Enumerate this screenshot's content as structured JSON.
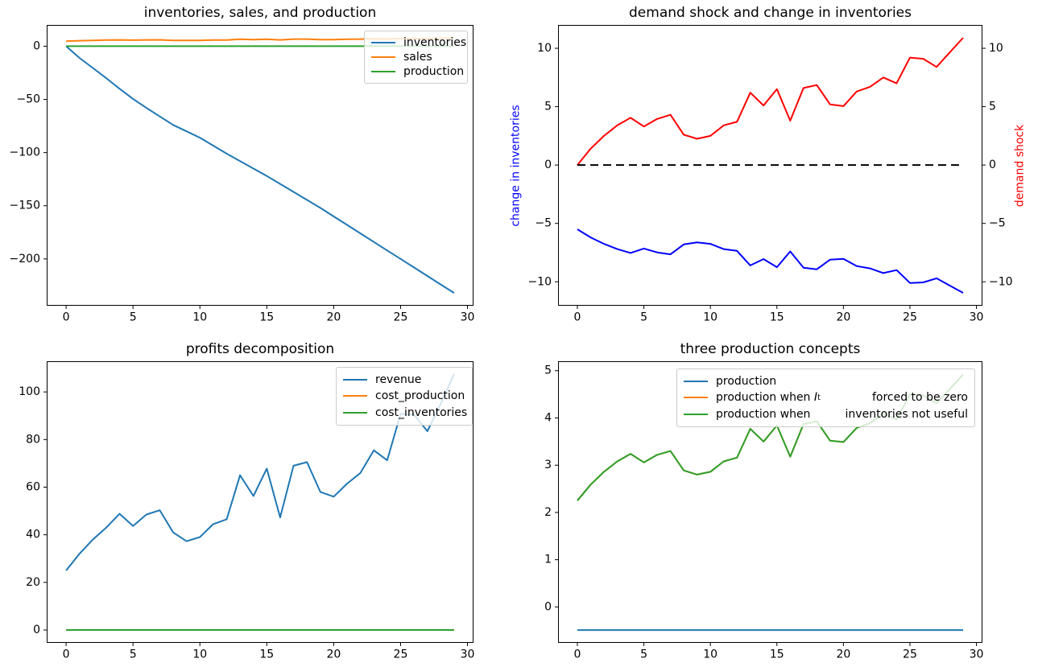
{
  "figure": {
    "background": "#ffffff"
  },
  "chart_data": [
    {
      "id": "inventories-sales-production",
      "type": "line",
      "title": "inventories, sales, and production",
      "x": [
        0,
        1,
        2,
        3,
        4,
        5,
        6,
        7,
        8,
        9,
        10,
        11,
        12,
        13,
        14,
        15,
        16,
        17,
        18,
        19,
        20,
        21,
        22,
        23,
        24,
        25,
        26,
        27,
        28,
        29
      ],
      "xlim": [
        -1.45,
        30.45
      ],
      "ylim": [
        -244,
        20
      ],
      "xticks": [
        0,
        5,
        10,
        15,
        20,
        25,
        30
      ],
      "yticks": [
        0,
        -50,
        -100,
        -150,
        -200
      ],
      "grid": false,
      "legend": {
        "position": "upper right",
        "entries": [
          {
            "label": "inventories"
          },
          {
            "label": "sales"
          },
          {
            "label": "production"
          }
        ]
      },
      "series": [
        {
          "name": "inventories",
          "color": "#1f77b4",
          "values": [
            0,
            -11,
            -20.5,
            -30,
            -40,
            -49.5,
            -58,
            -66,
            -74,
            -80,
            -86,
            -93.5,
            -101,
            -108,
            -115,
            -122,
            -129.5,
            -137,
            -144.5,
            -152,
            -160,
            -168,
            -176,
            -184,
            -192,
            -200,
            -208,
            -216,
            -224,
            -232
          ]
        },
        {
          "name": "sales",
          "color": "#ff7f0e",
          "values": [
            4.8,
            5.2,
            5.5,
            5.75,
            5.9,
            5.7,
            5.9,
            6.0,
            5.5,
            5.4,
            5.5,
            5.75,
            5.8,
            6.5,
            6.2,
            6.6,
            5.9,
            6.65,
            6.7,
            6.25,
            6.2,
            6.55,
            6.65,
            6.9,
            6.75,
            7.4,
            7.35,
            7.15,
            7.5,
            7.85
          ]
        },
        {
          "name": "production",
          "color": "#2ca02c",
          "values": [
            0,
            0,
            0,
            0,
            0,
            0,
            0,
            0,
            0,
            0,
            0,
            0,
            0,
            0,
            0,
            0,
            0,
            0,
            0,
            0,
            0,
            0,
            0,
            0,
            0,
            0,
            0,
            0,
            0,
            0
          ]
        }
      ]
    },
    {
      "id": "demand-shock-and-change-in-inventories",
      "type": "line",
      "title": "demand shock and change in inventories",
      "x": [
        0,
        1,
        2,
        3,
        4,
        5,
        6,
        7,
        8,
        9,
        10,
        11,
        12,
        13,
        14,
        15,
        16,
        17,
        18,
        19,
        20,
        21,
        22,
        23,
        24,
        25,
        26,
        27,
        28,
        29
      ],
      "xlim": [
        -1.45,
        30.45
      ],
      "ylim": [
        -12.05,
        12.0
      ],
      "xticks": [
        0,
        5,
        10,
        15,
        20,
        25,
        30
      ],
      "yticks_left": [
        10,
        5,
        0,
        -5,
        -10
      ],
      "yticks_right": [
        10,
        5,
        0,
        -5,
        -10
      ],
      "ylabel_left": {
        "text": "change in inventories",
        "color": "#0000ff"
      },
      "ylabel_right": {
        "text": "demand shock",
        "color": "#ff0000"
      },
      "grid": false,
      "series": [
        {
          "name": "change in inventories",
          "color": "#0000ff",
          "values": [
            -5.5,
            -6.2,
            -6.75,
            -7.2,
            -7.53,
            -7.15,
            -7.48,
            -7.65,
            -6.8,
            -6.63,
            -6.75,
            -7.2,
            -7.35,
            -8.6,
            -8.05,
            -8.75,
            -7.4,
            -8.8,
            -8.93,
            -8.1,
            -8.03,
            -8.65,
            -8.85,
            -9.25,
            -9.0,
            -10.1,
            -10.05,
            -9.7,
            -10.33,
            -10.95
          ]
        },
        {
          "name": "demand shock",
          "color": "#ff0000",
          "values": [
            0,
            1.4,
            2.5,
            3.4,
            4.05,
            3.3,
            3.95,
            4.3,
            2.6,
            2.25,
            2.5,
            3.4,
            3.7,
            6.2,
            5.1,
            6.5,
            3.8,
            6.6,
            6.85,
            5.2,
            5.05,
            6.3,
            6.7,
            7.5,
            7.0,
            9.2,
            9.1,
            8.4,
            9.65,
            10.9
          ]
        },
        {
          "name": "zero line",
          "color": "#000000",
          "dash": true,
          "values": [
            0,
            0,
            0,
            0,
            0,
            0,
            0,
            0,
            0,
            0,
            0,
            0,
            0,
            0,
            0,
            0,
            0,
            0,
            0,
            0,
            0,
            0,
            0,
            0,
            0,
            0,
            0,
            0,
            0,
            0
          ]
        }
      ]
    },
    {
      "id": "profits-decomposition",
      "type": "line",
      "title": "profits decomposition",
      "x": [
        0,
        1,
        2,
        3,
        4,
        5,
        6,
        7,
        8,
        9,
        10,
        11,
        12,
        13,
        14,
        15,
        16,
        17,
        18,
        19,
        20,
        21,
        22,
        23,
        24,
        25,
        26,
        27,
        28,
        29
      ],
      "xlim": [
        -1.45,
        30.45
      ],
      "ylim": [
        -5.4,
        112.9
      ],
      "xticks": [
        0,
        5,
        10,
        15,
        20,
        25,
        30
      ],
      "yticks": [
        0,
        20,
        40,
        60,
        80,
        100
      ],
      "grid": false,
      "legend": {
        "position": "upper right",
        "entries": [
          {
            "label": "revenue"
          },
          {
            "label": "cost_production"
          },
          {
            "label": "cost_inventories"
          }
        ]
      },
      "series": [
        {
          "name": "revenue",
          "color": "#1f77b4",
          "values": [
            25,
            32,
            38,
            43,
            48.8,
            43.7,
            48.5,
            50.3,
            41,
            37.3,
            39,
            44.5,
            46.5,
            65,
            56.3,
            67.8,
            47.3,
            69,
            70.5,
            58,
            56,
            61.5,
            66,
            75.5,
            71.3,
            90.8,
            90.5,
            83.5,
            95,
            107.5
          ]
        },
        {
          "name": "cost_production",
          "color": "#ff7f0e",
          "values": [
            0,
            0,
            0,
            0,
            0,
            0,
            0,
            0,
            0,
            0,
            0,
            0,
            0,
            0,
            0,
            0,
            0,
            0,
            0,
            0,
            0,
            0,
            0,
            0,
            0,
            0,
            0,
            0,
            0,
            0
          ]
        },
        {
          "name": "cost_inventories",
          "color": "#2ca02c",
          "values": [
            0,
            0,
            0,
            0,
            0,
            0,
            0,
            0,
            0,
            0,
            0,
            0,
            0,
            0,
            0,
            0,
            0,
            0,
            0,
            0,
            0,
            0,
            0,
            0,
            0,
            0,
            0,
            0,
            0,
            0
          ]
        }
      ]
    },
    {
      "id": "three-production-concepts",
      "type": "line",
      "title": "three production concepts",
      "x": [
        0,
        1,
        2,
        3,
        4,
        5,
        6,
        7,
        8,
        9,
        10,
        11,
        12,
        13,
        14,
        15,
        16,
        17,
        18,
        19,
        20,
        21,
        22,
        23,
        24,
        25,
        26,
        27,
        28,
        29
      ],
      "xlim": [
        -1.45,
        30.45
      ],
      "ylim": [
        -0.76,
        5.2
      ],
      "xticks": [
        0,
        5,
        10,
        15,
        20,
        25,
        30
      ],
      "yticks": [
        0,
        1,
        2,
        3,
        4,
        5
      ],
      "grid": false,
      "legend": {
        "position": "upper center",
        "entries": [
          {
            "label": "production"
          },
          {
            "label": "production when ",
            "math_var": "I",
            "math_sub": "t",
            "label_right": "forced to be zero"
          },
          {
            "label": "production when",
            "label_right": "inventories not useful"
          }
        ]
      },
      "series": [
        {
          "name": "production",
          "color": "#1f77b4",
          "values": [
            -0.49,
            -0.49,
            -0.49,
            -0.49,
            -0.49,
            -0.49,
            -0.49,
            -0.49,
            -0.49,
            -0.49,
            -0.49,
            -0.49,
            -0.49,
            -0.49,
            -0.49,
            -0.49,
            -0.49,
            -0.49,
            -0.49,
            -0.49,
            -0.49,
            -0.49,
            -0.49,
            -0.49,
            -0.49,
            -0.49,
            -0.49,
            -0.49,
            -0.49,
            -0.49
          ]
        },
        {
          "name": "production when I_t forced to be zero",
          "color": "#ff7f0e",
          "values": [
            2.25,
            2.59,
            2.86,
            3.08,
            3.24,
            3.06,
            3.22,
            3.3,
            2.89,
            2.8,
            2.86,
            3.08,
            3.16,
            3.77,
            3.5,
            3.84,
            3.18,
            3.87,
            3.93,
            3.52,
            3.49,
            3.79,
            3.89,
            4.09,
            3.97,
            4.5,
            4.48,
            4.31,
            4.61,
            4.92
          ]
        },
        {
          "name": "production when inventories not useful",
          "color": "#2ca02c",
          "values": [
            2.25,
            2.59,
            2.86,
            3.08,
            3.24,
            3.06,
            3.22,
            3.3,
            2.89,
            2.8,
            2.86,
            3.08,
            3.16,
            3.77,
            3.5,
            3.84,
            3.18,
            3.87,
            3.93,
            3.52,
            3.49,
            3.79,
            3.89,
            4.09,
            3.97,
            4.5,
            4.48,
            4.31,
            4.61,
            4.92
          ]
        }
      ]
    }
  ]
}
